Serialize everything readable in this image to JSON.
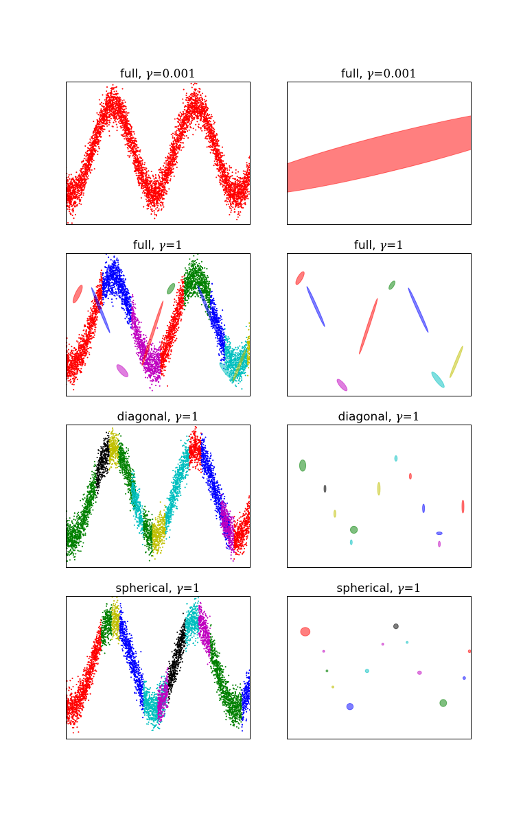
{
  "colors": {
    "r": "#ff0000",
    "b": "#0000ff",
    "g": "#008000",
    "m": "#bf00bf",
    "c": "#00bfbf",
    "y": "#bfbf00",
    "k": "#000000"
  },
  "chart_data": [
    {
      "type": "scatter",
      "title_prefix": "full, ",
      "title_symbol": "γ",
      "title_eq": "=",
      "title_value": "0.001",
      "xlim": [
        -2,
        12
      ],
      "ylim": [
        -2,
        2
      ],
      "grid": false,
      "series": [
        {
          "color": "r",
          "x_range": [
            -2,
            12
          ]
        }
      ]
    },
    {
      "type": "scatter",
      "title_prefix": "full, ",
      "title_symbol": "γ",
      "title_eq": "=",
      "title_value": "0.001",
      "xlim": [
        -2,
        12
      ],
      "ylim": [
        -2,
        2
      ],
      "grid": false,
      "ellipses": [
        {
          "color": "r",
          "cx": 6.3,
          "cy": 0.05,
          "rx": 7.0,
          "ry": 0.75,
          "angle": -14
        }
      ]
    },
    {
      "type": "scatter",
      "title_prefix": "full, ",
      "title_symbol": "γ",
      "title_eq": "=",
      "title_value": "1",
      "xlim": [
        -2,
        12
      ],
      "ylim": [
        -2,
        2
      ],
      "grid": false,
      "series": [
        {
          "color": "r",
          "x_range": [
            -2,
            0.8
          ]
        },
        {
          "color": "b",
          "x_range": [
            0.8,
            3.0
          ]
        },
        {
          "color": "m",
          "x_range": [
            3.0,
            5.2
          ]
        },
        {
          "color": "r",
          "x_range": [
            5.2,
            7.0
          ]
        },
        {
          "color": "g",
          "x_range": [
            7.0,
            9.0
          ]
        },
        {
          "color": "b",
          "x_range": [
            9.0,
            10.1
          ]
        },
        {
          "color": "c",
          "x_range": [
            10.1,
            11.8
          ]
        },
        {
          "color": "y",
          "x_range": [
            11.8,
            12
          ]
        }
      ],
      "ellipses": [
        {
          "color": "r",
          "cx": -1.1,
          "cy": 0.85,
          "rx": 0.4,
          "ry": 0.1,
          "angle": -65
        },
        {
          "color": "b",
          "cx": 0.65,
          "cy": 0.4,
          "rx": 1.0,
          "ry": 0.05,
          "angle": 68
        },
        {
          "color": "m",
          "cx": 2.3,
          "cy": -1.3,
          "rx": 0.32,
          "ry": 0.12,
          "angle": 48
        },
        {
          "color": "r",
          "cx": 4.6,
          "cy": -0.25,
          "rx": 1.4,
          "ry": 0.05,
          "angle": -72
        },
        {
          "color": "g",
          "cx": 6.0,
          "cy": 1.0,
          "rx": 0.25,
          "ry": 0.1,
          "angle": -58
        },
        {
          "color": "b",
          "cx": 8.8,
          "cy": 0.4,
          "rx": 1.1,
          "ry": 0.05,
          "angle": 68
        },
        {
          "color": "c",
          "cx": 10.2,
          "cy": -1.3,
          "rx": 0.42,
          "ry": 0.1,
          "angle": 52
        },
        {
          "color": "y",
          "cx": 11.2,
          "cy": -1.15,
          "rx": 0.7,
          "ry": 0.05,
          "angle": -68
        }
      ]
    },
    {
      "type": "scatter",
      "title_prefix": "full, ",
      "title_symbol": "γ",
      "title_eq": "=",
      "title_value": "1",
      "xlim": [
        -2,
        12
      ],
      "ylim": [
        -2,
        2
      ],
      "grid": false,
      "ellipses": [
        {
          "color": "r",
          "cx": -1.0,
          "cy": 1.3,
          "rx": 0.3,
          "ry": 0.1,
          "angle": -60
        },
        {
          "color": "b",
          "cx": 0.2,
          "cy": 0.5,
          "rx": 0.9,
          "ry": 0.05,
          "angle": 66
        },
        {
          "color": "m",
          "cx": 2.2,
          "cy": -1.7,
          "rx": 0.3,
          "ry": 0.1,
          "angle": 50
        },
        {
          "color": "r",
          "cx": 4.2,
          "cy": -0.05,
          "rx": 1.2,
          "ry": 0.05,
          "angle": -72
        },
        {
          "color": "g",
          "cx": 6.0,
          "cy": 1.1,
          "rx": 0.2,
          "ry": 0.08,
          "angle": -58
        },
        {
          "color": "b",
          "cx": 8.0,
          "cy": 0.4,
          "rx": 1.0,
          "ry": 0.05,
          "angle": 66
        },
        {
          "color": "c",
          "cx": 9.5,
          "cy": -1.55,
          "rx": 0.4,
          "ry": 0.1,
          "angle": 52
        },
        {
          "color": "y",
          "cx": 10.9,
          "cy": -1.05,
          "rx": 0.7,
          "ry": 0.05,
          "angle": -68
        }
      ]
    },
    {
      "type": "scatter",
      "title_prefix": "diagonal, ",
      "title_symbol": "γ",
      "title_eq": "=",
      "title_value": "1",
      "xlim": [
        -2,
        12
      ],
      "ylim": [
        -2,
        2
      ],
      "grid": false,
      "series": [
        {
          "color": "g",
          "x_range": [
            -2,
            0.3
          ]
        },
        {
          "color": "k",
          "x_range": [
            0.3,
            1.3
          ]
        },
        {
          "color": "y",
          "x_range": [
            1.3,
            2.0
          ]
        },
        {
          "color": "g",
          "x_range": [
            2.0,
            3.3
          ]
        },
        {
          "color": "c",
          "x_range": [
            3.0,
            3.9
          ]
        },
        {
          "color": "g",
          "x_range": [
            3.9,
            4.6
          ]
        },
        {
          "color": "y",
          "x_range": [
            4.6,
            5.6
          ]
        },
        {
          "color": "c",
          "x_range": [
            5.6,
            7.4
          ]
        },
        {
          "color": "r",
          "x_range": [
            7.4,
            8.3
          ]
        },
        {
          "color": "b",
          "x_range": [
            8.3,
            10.5
          ]
        },
        {
          "color": "m",
          "x_range": [
            9.8,
            10.8
          ]
        },
        {
          "color": "r",
          "x_range": [
            10.8,
            12
          ]
        }
      ]
    },
    {
      "type": "scatter",
      "title_prefix": "diagonal, ",
      "title_symbol": "γ",
      "title_eq": "=",
      "title_value": "1",
      "xlim": [
        -2,
        12
      ],
      "ylim": [
        -2,
        2
      ],
      "grid": false,
      "ellipses": [
        {
          "color": "g",
          "cx": -0.8,
          "cy": 0.85,
          "rx": 0.24,
          "ry": 0.16,
          "angle": 0
        },
        {
          "color": "k",
          "cx": 0.9,
          "cy": 0.2,
          "rx": 0.05,
          "ry": 0.1,
          "angle": 0
        },
        {
          "color": "y",
          "cx": 1.65,
          "cy": -0.5,
          "rx": 0.05,
          "ry": 0.1,
          "angle": 0
        },
        {
          "color": "g",
          "cx": 3.1,
          "cy": -0.95,
          "rx": 0.27,
          "ry": 0.1,
          "angle": 0
        },
        {
          "color": "c",
          "cx": 2.9,
          "cy": -1.3,
          "rx": 0.07,
          "ry": 0.07,
          "angle": 0
        },
        {
          "color": "y",
          "cx": 5.0,
          "cy": 0.2,
          "rx": 0.1,
          "ry": 0.18,
          "angle": 0
        },
        {
          "color": "c",
          "cx": 6.3,
          "cy": 1.05,
          "rx": 0.1,
          "ry": 0.08,
          "angle": 0
        },
        {
          "color": "r",
          "cx": 7.4,
          "cy": 0.55,
          "rx": 0.05,
          "ry": 0.08,
          "angle": 0
        },
        {
          "color": "b",
          "cx": 8.4,
          "cy": -0.35,
          "rx": 0.06,
          "ry": 0.12,
          "angle": 0
        },
        {
          "color": "b",
          "cx": 9.6,
          "cy": -1.05,
          "rx": 0.22,
          "ry": 0.04,
          "angle": 0
        },
        {
          "color": "m",
          "cx": 9.6,
          "cy": -1.35,
          "rx": 0.08,
          "ry": 0.08,
          "angle": 0
        },
        {
          "color": "r",
          "cx": 11.4,
          "cy": -0.3,
          "rx": 0.08,
          "ry": 0.18,
          "angle": 0
        }
      ]
    },
    {
      "type": "scatter",
      "title_prefix": "spherical, ",
      "title_symbol": "γ",
      "title_eq": "=",
      "title_value": "1",
      "xlim": [
        -2,
        12
      ],
      "ylim": [
        -2,
        2
      ],
      "grid": false,
      "series": [
        {
          "color": "r",
          "x_range": [
            -2,
            0.7
          ]
        },
        {
          "color": "g",
          "x_range": [
            0.7,
            1.5
          ]
        },
        {
          "color": "y",
          "x_range": [
            1.5,
            2.1
          ]
        },
        {
          "color": "b",
          "x_range": [
            2.1,
            3.9
          ]
        },
        {
          "color": "c",
          "x_range": [
            3.9,
            5.7
          ]
        },
        {
          "color": "m",
          "x_range": [
            5.0,
            5.8
          ]
        },
        {
          "color": "k",
          "x_range": [
            5.8,
            7.1
          ]
        },
        {
          "color": "c",
          "x_range": [
            7.1,
            8.1
          ]
        },
        {
          "color": "m",
          "x_range": [
            8.1,
            9.0
          ]
        },
        {
          "color": "g",
          "x_range": [
            9.0,
            11.4
          ]
        },
        {
          "color": "b",
          "x_range": [
            11.4,
            12
          ]
        }
      ]
    },
    {
      "type": "scatter",
      "title_prefix": "spherical, ",
      "title_symbol": "γ",
      "title_eq": "=",
      "title_value": "1",
      "xlim": [
        -2,
        12
      ],
      "ylim": [
        -2,
        2
      ],
      "grid": false,
      "ellipses": [
        {
          "color": "r",
          "cx": -0.6,
          "cy": 1.0,
          "rx": 0.36,
          "ry": 0.12,
          "angle": 0
        },
        {
          "color": "m",
          "cx": 0.8,
          "cy": 0.45,
          "rx": 0.06,
          "ry": 0.02,
          "angle": 0
        },
        {
          "color": "g",
          "cx": 1.05,
          "cy": -0.1,
          "rx": 0.05,
          "ry": 0.02,
          "angle": 0
        },
        {
          "color": "y",
          "cx": 1.5,
          "cy": -0.55,
          "rx": 0.08,
          "ry": 0.03,
          "angle": 0
        },
        {
          "color": "b",
          "cx": 2.8,
          "cy": -1.1,
          "rx": 0.25,
          "ry": 0.09,
          "angle": 0
        },
        {
          "color": "c",
          "cx": 4.1,
          "cy": -0.1,
          "rx": 0.14,
          "ry": 0.05,
          "angle": 0
        },
        {
          "color": "m",
          "cx": 5.3,
          "cy": 0.65,
          "rx": 0.06,
          "ry": 0.02,
          "angle": 0
        },
        {
          "color": "k",
          "cx": 6.3,
          "cy": 1.15,
          "rx": 0.18,
          "ry": 0.07,
          "angle": 0
        },
        {
          "color": "c",
          "cx": 7.15,
          "cy": 0.7,
          "rx": 0.06,
          "ry": 0.02,
          "angle": 0
        },
        {
          "color": "m",
          "cx": 8.1,
          "cy": -0.15,
          "rx": 0.15,
          "ry": 0.05,
          "angle": 0
        },
        {
          "color": "g",
          "cx": 9.9,
          "cy": -1.0,
          "rx": 0.26,
          "ry": 0.1,
          "angle": 0
        },
        {
          "color": "b",
          "cx": 11.5,
          "cy": -0.3,
          "rx": 0.1,
          "ry": 0.04,
          "angle": 0
        },
        {
          "color": "r",
          "cx": 11.9,
          "cy": 0.45,
          "rx": 0.1,
          "ry": 0.04,
          "angle": 0
        }
      ]
    }
  ]
}
